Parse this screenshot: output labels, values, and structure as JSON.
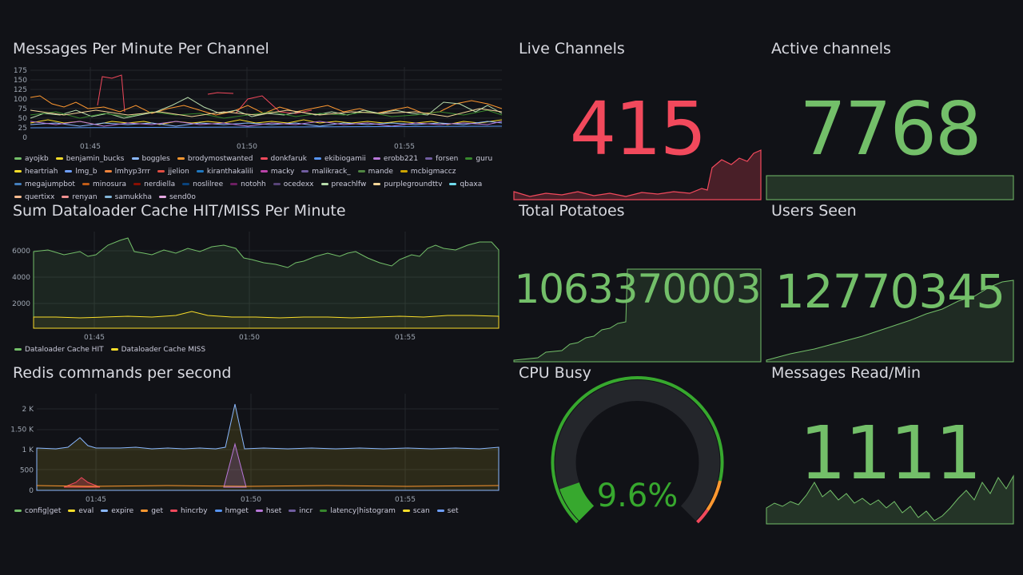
{
  "panels": {
    "messages": {
      "title": "Messages Per Minute Per Channel",
      "legend": [
        {
          "name": "ayojkb",
          "color": "#73bf69"
        },
        {
          "name": "benjamin_bucks",
          "color": "#fade2a"
        },
        {
          "name": "boggles",
          "color": "#8ab8ff"
        },
        {
          "name": "brodymostwanted",
          "color": "#ff9830"
        },
        {
          "name": "donkfaruk",
          "color": "#f2495c"
        },
        {
          "name": "ekibiogamii",
          "color": "#5794f2"
        },
        {
          "name": "erobb221",
          "color": "#b877d9"
        },
        {
          "name": "forsen",
          "color": "#705da0"
        },
        {
          "name": "guru",
          "color": "#37872d"
        },
        {
          "name": "heartriah",
          "color": "#fade2a"
        },
        {
          "name": "lmg_b",
          "color": "#6e9fff"
        },
        {
          "name": "lmhyp3rrr",
          "color": "#ef843c"
        },
        {
          "name": "jjelion",
          "color": "#e24d42"
        },
        {
          "name": "kiranthakalili",
          "color": "#1f78c1"
        },
        {
          "name": "macky",
          "color": "#ba43a9"
        },
        {
          "name": "malikrack_",
          "color": "#705da0"
        },
        {
          "name": "mande",
          "color": "#508642"
        },
        {
          "name": "mcbigmaccz",
          "color": "#cca300"
        },
        {
          "name": "megajumpbot",
          "color": "#447ebc"
        },
        {
          "name": "minosura",
          "color": "#c15c17"
        },
        {
          "name": "nerdiella",
          "color": "#890f02"
        },
        {
          "name": "noslilree",
          "color": "#0a437c"
        },
        {
          "name": "notohh",
          "color": "#6d1f62"
        },
        {
          "name": "ocedexx",
          "color": "#584477"
        },
        {
          "name": "preachlfw",
          "color": "#b7dbab"
        },
        {
          "name": "purplegroundttv",
          "color": "#f4d598"
        },
        {
          "name": "qbaxa",
          "color": "#70dbed"
        },
        {
          "name": "quertixx",
          "color": "#f9ba8f"
        },
        {
          "name": "renyan",
          "color": "#f29191"
        },
        {
          "name": "samukkha",
          "color": "#82b5d8"
        },
        {
          "name": "send0o",
          "color": "#e5a8e2"
        }
      ],
      "y_ticks": [
        "175",
        "150",
        "125",
        "100",
        "75",
        "50",
        "25",
        "0"
      ],
      "x_ticks": [
        "01:45",
        "01:50",
        "01:55"
      ]
    },
    "dataloader": {
      "title": "Sum Dataloader Cache HIT/MISS Per Minute",
      "y_ticks": [
        "6000",
        "4000",
        "2000"
      ],
      "x_ticks": [
        "01:45",
        "01:50",
        "01:55"
      ],
      "legend": [
        {
          "name": "Dataloader Cache HIT",
          "color": "#73bf69"
        },
        {
          "name": "Dataloader Cache MISS",
          "color": "#fade2a"
        }
      ]
    },
    "redis": {
      "title": "Redis commands per second",
      "y_ticks": [
        "2 K",
        "1.50 K",
        "1 K",
        "500",
        "0"
      ],
      "x_ticks": [
        "01:45",
        "01:50",
        "01:55"
      ],
      "legend": [
        {
          "name": "config|get",
          "color": "#73bf69"
        },
        {
          "name": "eval",
          "color": "#fade2a"
        },
        {
          "name": "expire",
          "color": "#8ab8ff"
        },
        {
          "name": "get",
          "color": "#ff9830"
        },
        {
          "name": "hincrby",
          "color": "#f2495c"
        },
        {
          "name": "hmget",
          "color": "#5794f2"
        },
        {
          "name": "hset",
          "color": "#b877d9"
        },
        {
          "name": "incr",
          "color": "#705da0"
        },
        {
          "name": "latency|histogram",
          "color": "#37872d"
        },
        {
          "name": "scan",
          "color": "#fade2a"
        },
        {
          "name": "set",
          "color": "#6e9fff"
        }
      ]
    },
    "live_channels": {
      "title": "Live Channels",
      "value": "415",
      "color": "#f2495c"
    },
    "active_channels": {
      "title": "Active channels",
      "value": "7768",
      "color": "#73bf69"
    },
    "total_potatoes": {
      "title": "Total Potatoes",
      "value": "1063370003",
      "color": "#73bf69"
    },
    "users_seen": {
      "title": "Users Seen",
      "value": "12770345",
      "color": "#73bf69"
    },
    "cpu_busy": {
      "title": "CPU Busy",
      "value": "9.6%",
      "percent": 9.6,
      "color": "#37a82e"
    },
    "messages_read": {
      "title": "Messages Read/Min",
      "value": "1111",
      "color": "#73bf69"
    }
  }
}
